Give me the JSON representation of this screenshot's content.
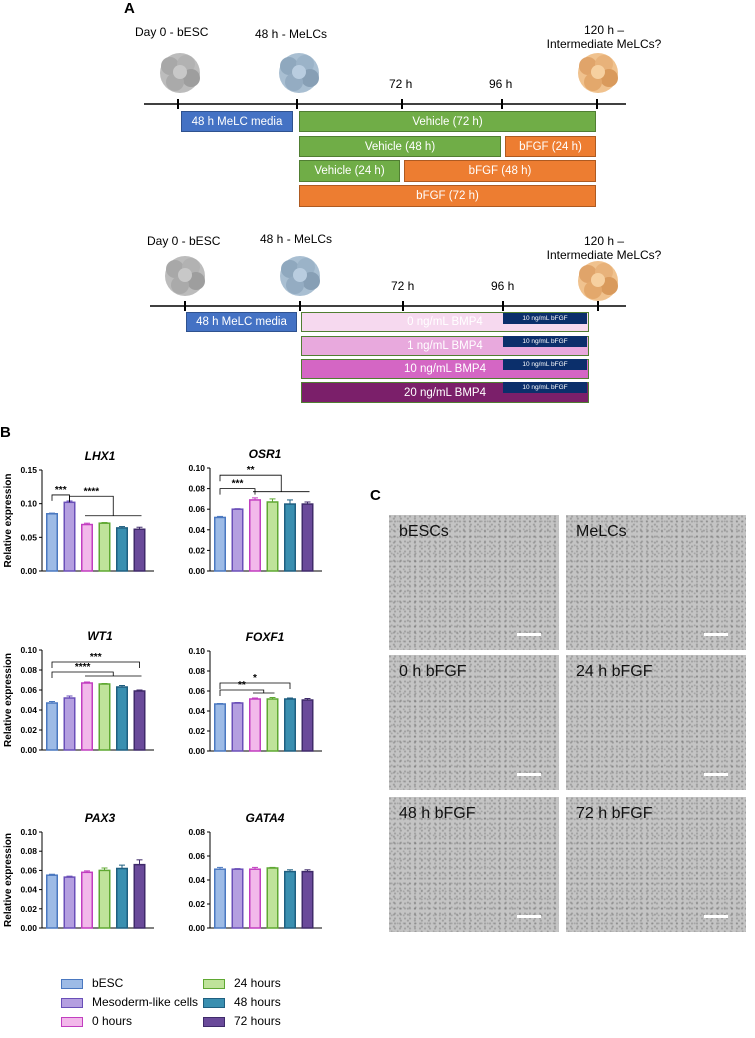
{
  "panel_a": {
    "label": "A",
    "timeline1": {
      "t0": "Day 0 - bESC",
      "t48": "48 h - MeLCs",
      "t72": "72 h",
      "t96": "96 h",
      "t120_line1": "120 h –",
      "t120_line2": "Intermediate MeLCs?",
      "media": "48 h MeLC media",
      "bars": [
        "Vehicle (72 h)",
        "Vehicle (48 h)",
        "bFGF (24 h)",
        "Vehicle (24 h)",
        "bFGF (48 h)",
        "bFGF (72 h)"
      ]
    },
    "timeline2": {
      "t0": "Day 0 - bESC",
      "t48": "48 h - MeLCs",
      "t72": "72 h",
      "t96": "96 h",
      "t120_line1": "120 h –",
      "t120_line2": "Intermediate MeLCs?",
      "media": "48 h MeLC media",
      "bars": [
        "0 ng/mL BMP4",
        "1 ng/mL BMP4",
        "10 ng/mL BMP4",
        "20 ng/mL BMP4"
      ],
      "fgf_label": "10 ng/mL bFGF"
    },
    "colors": {
      "blue": "#4472c4",
      "green": "#70ad47",
      "orange": "#ed7d31",
      "bmp0": "#f6d9ef",
      "bmp1": "#e8a9dd",
      "bmp10": "#d466c4",
      "bmp20": "#7b1f6a"
    }
  },
  "panel_b": {
    "label": "B"
  },
  "panel_c": {
    "label": "C",
    "images": [
      "bESCs",
      "MeLCs",
      "0 h bFGF",
      "24 h bFGF",
      "48 h bFGF",
      "72 h bFGF"
    ]
  },
  "legend": {
    "items": [
      "bESC",
      "24 hours",
      "Mesoderm-like cells",
      "48 hours",
      "0 hours",
      "72 hours"
    ],
    "colors": [
      {
        "fill": "#9dbbe6",
        "stroke": "#4a78c0"
      },
      {
        "fill": "#bfe39a",
        "stroke": "#5fa832"
      },
      {
        "fill": "#b49fe0",
        "stroke": "#6a4fb8"
      },
      {
        "fill": "#3a8fb0",
        "stroke": "#1f5f80"
      },
      {
        "fill": "#f2b8ea",
        "stroke": "#c23ec0"
      },
      {
        "fill": "#6a4a9a",
        "stroke": "#3f2a6a"
      }
    ]
  },
  "chart_data": [
    {
      "type": "bar",
      "title": "LHX1",
      "ylabel": "Relative expression",
      "ylim": [
        0,
        0.15
      ],
      "yticks": [
        "0.00",
        "0.05",
        "0.10",
        "0.15"
      ],
      "categories": [
        "bESC",
        "Mesoderm-like cells",
        "0 hours",
        "24 hours",
        "48 hours",
        "72 hours"
      ],
      "values": [
        0.085,
        0.102,
        0.069,
        0.071,
        0.064,
        0.062
      ],
      "errors": [
        0.001,
        0.002,
        0.002,
        0.001,
        0.002,
        0.003
      ],
      "significance": [
        "***",
        "****"
      ]
    },
    {
      "type": "bar",
      "title": "OSR1",
      "ylabel": "",
      "ylim": [
        0,
        0.1
      ],
      "yticks": [
        "0.00",
        "0.02",
        "0.04",
        "0.06",
        "0.08",
        "0.10"
      ],
      "categories": [
        "bESC",
        "Mesoderm-like cells",
        "0 hours",
        "24 hours",
        "48 hours",
        "72 hours"
      ],
      "values": [
        0.052,
        0.06,
        0.069,
        0.067,
        0.065,
        0.065
      ],
      "errors": [
        0.001,
        0.0005,
        0.002,
        0.003,
        0.004,
        0.002
      ],
      "significance": [
        "***",
        "**"
      ]
    },
    {
      "type": "bar",
      "title": "WT1",
      "ylabel": "Relative expression",
      "ylim": [
        0,
        0.1
      ],
      "yticks": [
        "0.00",
        "0.02",
        "0.04",
        "0.06",
        "0.08",
        "0.10"
      ],
      "categories": [
        "bESC",
        "Mesoderm-like cells",
        "0 hours",
        "24 hours",
        "48 hours",
        "72 hours"
      ],
      "values": [
        0.047,
        0.052,
        0.067,
        0.066,
        0.063,
        0.059
      ],
      "errors": [
        0.0015,
        0.002,
        0.001,
        0.0005,
        0.0015,
        0.001
      ],
      "significance": [
        "****",
        "***"
      ]
    },
    {
      "type": "bar",
      "title": "FOXF1",
      "ylabel": "",
      "ylim": [
        0,
        0.1
      ],
      "yticks": [
        "0.00",
        "0.02",
        "0.04",
        "0.06",
        "0.08",
        "0.10"
      ],
      "categories": [
        "bESC",
        "Mesoderm-like cells",
        "0 hours",
        "24 hours",
        "48 hours",
        "72 hours"
      ],
      "values": [
        0.047,
        0.048,
        0.052,
        0.052,
        0.052,
        0.051
      ],
      "errors": [
        0.0005,
        0.0005,
        0.001,
        0.0015,
        0.001,
        0.0015
      ],
      "significance": [
        "**",
        "*"
      ]
    },
    {
      "type": "bar",
      "title": "PAX3",
      "ylabel": "Relative expression",
      "ylim": [
        0,
        0.1
      ],
      "yticks": [
        "0.00",
        "0.02",
        "0.04",
        "0.06",
        "0.08",
        "0.10"
      ],
      "categories": [
        "bESC",
        "Mesoderm-like cells",
        "0 hours",
        "24 hours",
        "48 hours",
        "72 hours"
      ],
      "values": [
        0.055,
        0.053,
        0.058,
        0.06,
        0.062,
        0.066
      ],
      "errors": [
        0.001,
        0.001,
        0.0015,
        0.0025,
        0.0035,
        0.005
      ],
      "significance": []
    },
    {
      "type": "bar",
      "title": "GATA4",
      "ylabel": "",
      "ylim": [
        0,
        0.08
      ],
      "yticks": [
        "0.00",
        "0.02",
        "0.04",
        "0.06",
        "0.08"
      ],
      "categories": [
        "bESC",
        "Mesoderm-like cells",
        "0 hours",
        "24 hours",
        "48 hours",
        "72 hours"
      ],
      "values": [
        0.049,
        0.049,
        0.049,
        0.05,
        0.047,
        0.047
      ],
      "errors": [
        0.0015,
        0.0005,
        0.0015,
        0.0005,
        0.0015,
        0.0015
      ],
      "significance": []
    }
  ]
}
